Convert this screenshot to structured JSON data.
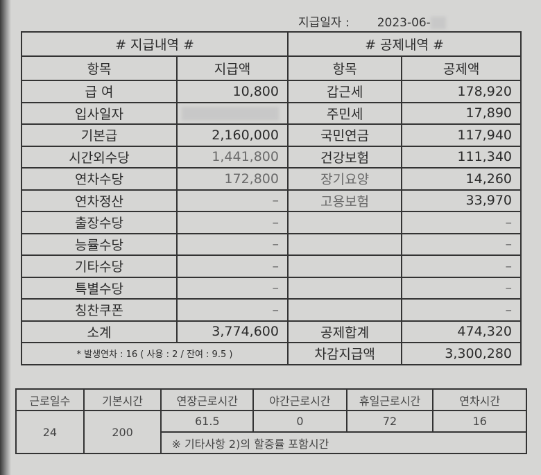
{
  "date_label": "지급일자 :",
  "date_value": "2023-06-",
  "pay": {
    "title": "# 지급내역 #",
    "col_item": "항목",
    "col_amount": "지급액",
    "rows": [
      {
        "item": "급 여",
        "amount": "10,800"
      },
      {
        "item": "입사일자",
        "amount": ""
      },
      {
        "item": "기본급",
        "amount": "2,160,000"
      },
      {
        "item": "시간외수당",
        "amount": "1,441,800"
      },
      {
        "item": "연차수당",
        "amount": "172,800"
      },
      {
        "item": "연차정산",
        "amount": "–"
      },
      {
        "item": "출장수당",
        "amount": "–"
      },
      {
        "item": "능률수당",
        "amount": "–"
      },
      {
        "item": "기타수당",
        "amount": "–"
      },
      {
        "item": "특별수당",
        "amount": "–"
      },
      {
        "item": "칭찬쿠폰",
        "amount": "–"
      }
    ],
    "subtotal_label": "소계",
    "subtotal": "3,774,600",
    "note": "* 발생연차 : 16 ( 사용 : 2 / 잔여 : 9.5 )"
  },
  "deduct": {
    "title": "# 공제내역 #",
    "col_item": "항목",
    "col_amount": "공제액",
    "rows": [
      {
        "item": "갑근세",
        "amount": "178,920"
      },
      {
        "item": "주민세",
        "amount": "17,890"
      },
      {
        "item": "국민연금",
        "amount": "117,940"
      },
      {
        "item": "건강보험",
        "amount": "111,340"
      },
      {
        "item": "장기요양",
        "amount": "14,260"
      },
      {
        "item": "고용보험",
        "amount": "33,970"
      },
      {
        "item": "",
        "amount": "–"
      },
      {
        "item": "",
        "amount": "–"
      },
      {
        "item": "",
        "amount": "–"
      },
      {
        "item": "",
        "amount": "–"
      },
      {
        "item": "",
        "amount": "–"
      }
    ],
    "total_label": "공제합계",
    "total": "474,320",
    "net_label": "차감지급액",
    "net": "3,300,280"
  },
  "hours": {
    "headers": [
      "근로일수",
      "기본시간",
      "연장근로시간",
      "야간근로시간",
      "휴일근로시간",
      "연차시간"
    ],
    "work_days": "24",
    "base_hours": "200",
    "values": [
      "61.5",
      "0",
      "72",
      "16"
    ],
    "note": "※ 기타사항 2)의 할증률 포함시간"
  }
}
